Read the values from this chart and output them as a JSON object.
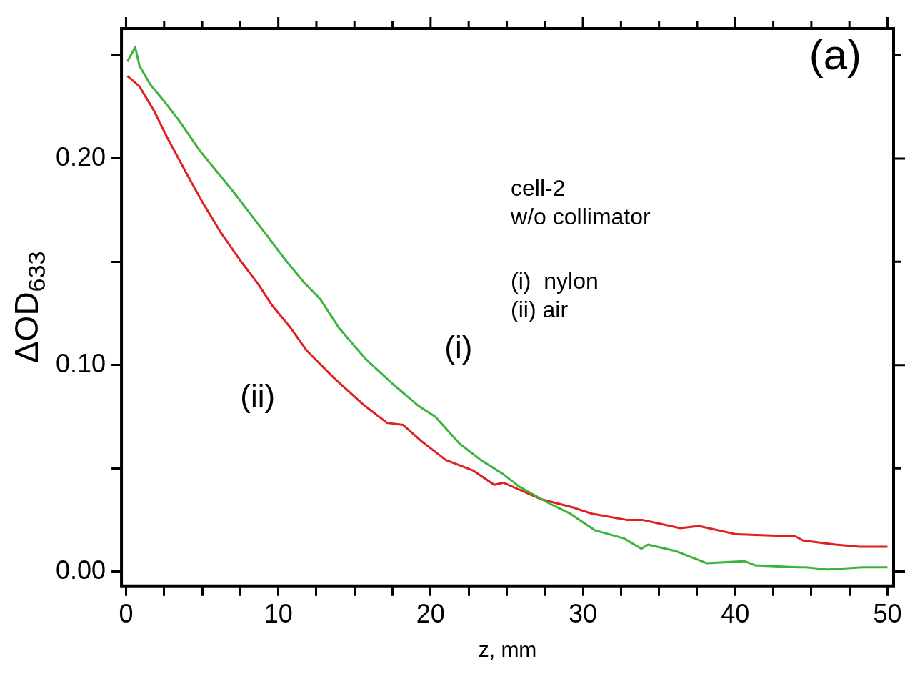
{
  "chart_data": {
    "type": "line",
    "title": "(a)",
    "xlabel": "z, mm",
    "ylabel": "ΔOD$_{633}$",
    "xlim": [
      -0.3,
      50.4
    ],
    "ylim": [
      -0.007,
      0.263
    ],
    "xticks": [
      0,
      {
        "value": 2.5,
        "label": null
      },
      {
        "value": 5,
        "label": null
      },
      {
        "value": 7.5,
        "label": null
      },
      10,
      {
        "value": 12.5,
        "label": null
      },
      {
        "value": 15,
        "label": null
      },
      {
        "value": 17.5,
        "label": null
      },
      20,
      {
        "value": 22.5,
        "label": null
      },
      {
        "value": 25,
        "label": null
      },
      {
        "value": 27.5,
        "label": null
      },
      30,
      {
        "value": 32.5,
        "label": null
      },
      {
        "value": 35,
        "label": null
      },
      {
        "value": 37.5,
        "label": null
      },
      40,
      {
        "value": 42.5,
        "label": null
      },
      {
        "value": 45,
        "label": null
      },
      {
        "value": 47.5,
        "label": null
      },
      50
    ],
    "yticks": [
      {
        "value": 0,
        "label": "0.00"
      },
      {
        "value": 0.05,
        "label": null
      },
      {
        "value": 0.1,
        "label": "0.10"
      },
      {
        "value": 0.15,
        "label": null
      },
      {
        "value": 0.2,
        "label": "0.20"
      },
      {
        "value": 0.25,
        "label": null
      }
    ],
    "grid": false,
    "legend": false,
    "annotations": [
      "cell-2",
      "w/o collimator",
      "(i)  nylon",
      "(ii) air"
    ],
    "series": [
      {
        "name": "(i)",
        "color": "#3cb43c",
        "x": [
          0.09,
          0.6,
          0.88,
          1.58,
          2.37,
          3.43,
          4.83,
          5.71,
          6.94,
          8.18,
          9.23,
          10.46,
          11.69,
          12.75,
          13.98,
          15.73,
          17.49,
          19.25,
          20.31,
          21.89,
          23.3,
          24.79,
          25.84,
          27.78,
          29.17,
          30.77,
          32.7,
          33.84,
          34.28,
          36.04,
          38.15,
          40.6,
          41.3,
          44.13,
          44.65,
          46.06,
          48.35,
          50
        ],
        "values": [
          0.247,
          0.254,
          0.245,
          0.236,
          0.229,
          0.219,
          0.204,
          0.196,
          0.185,
          0.173,
          0.163,
          0.151,
          0.14,
          0.132,
          0.118,
          0.103,
          0.091,
          0.08,
          0.075,
          0.062,
          0.054,
          0.047,
          0.041,
          0.033,
          0.028,
          0.02,
          0.016,
          0.011,
          0.013,
          0.01,
          0.004,
          0.005,
          0.003,
          0.002,
          0.002,
          0.001,
          0.002,
          0.002
        ]
      },
      {
        "name": "(ii)",
        "color": "#e02020",
        "x": [
          0.09,
          0.88,
          1.85,
          2.72,
          3.96,
          5.01,
          6.24,
          7.47,
          8.7,
          9.58,
          10.81,
          11.87,
          13.62,
          15.56,
          17.14,
          18.2,
          19.42,
          21.0,
          22.77,
          24.17,
          24.79,
          27.25,
          29.36,
          30.59,
          32.87,
          33.9,
          36.39,
          37.62,
          40.08,
          43.95,
          44.46,
          46.59,
          48.17,
          50
        ],
        "values": [
          0.24,
          0.235,
          0.223,
          0.21,
          0.193,
          0.179,
          0.164,
          0.151,
          0.139,
          0.129,
          0.118,
          0.107,
          0.094,
          0.081,
          0.072,
          0.071,
          0.063,
          0.054,
          0.049,
          0.042,
          0.043,
          0.035,
          0.031,
          0.028,
          0.025,
          0.025,
          0.021,
          0.022,
          0.018,
          0.017,
          0.015,
          0.013,
          0.012,
          0.012
        ]
      }
    ]
  }
}
